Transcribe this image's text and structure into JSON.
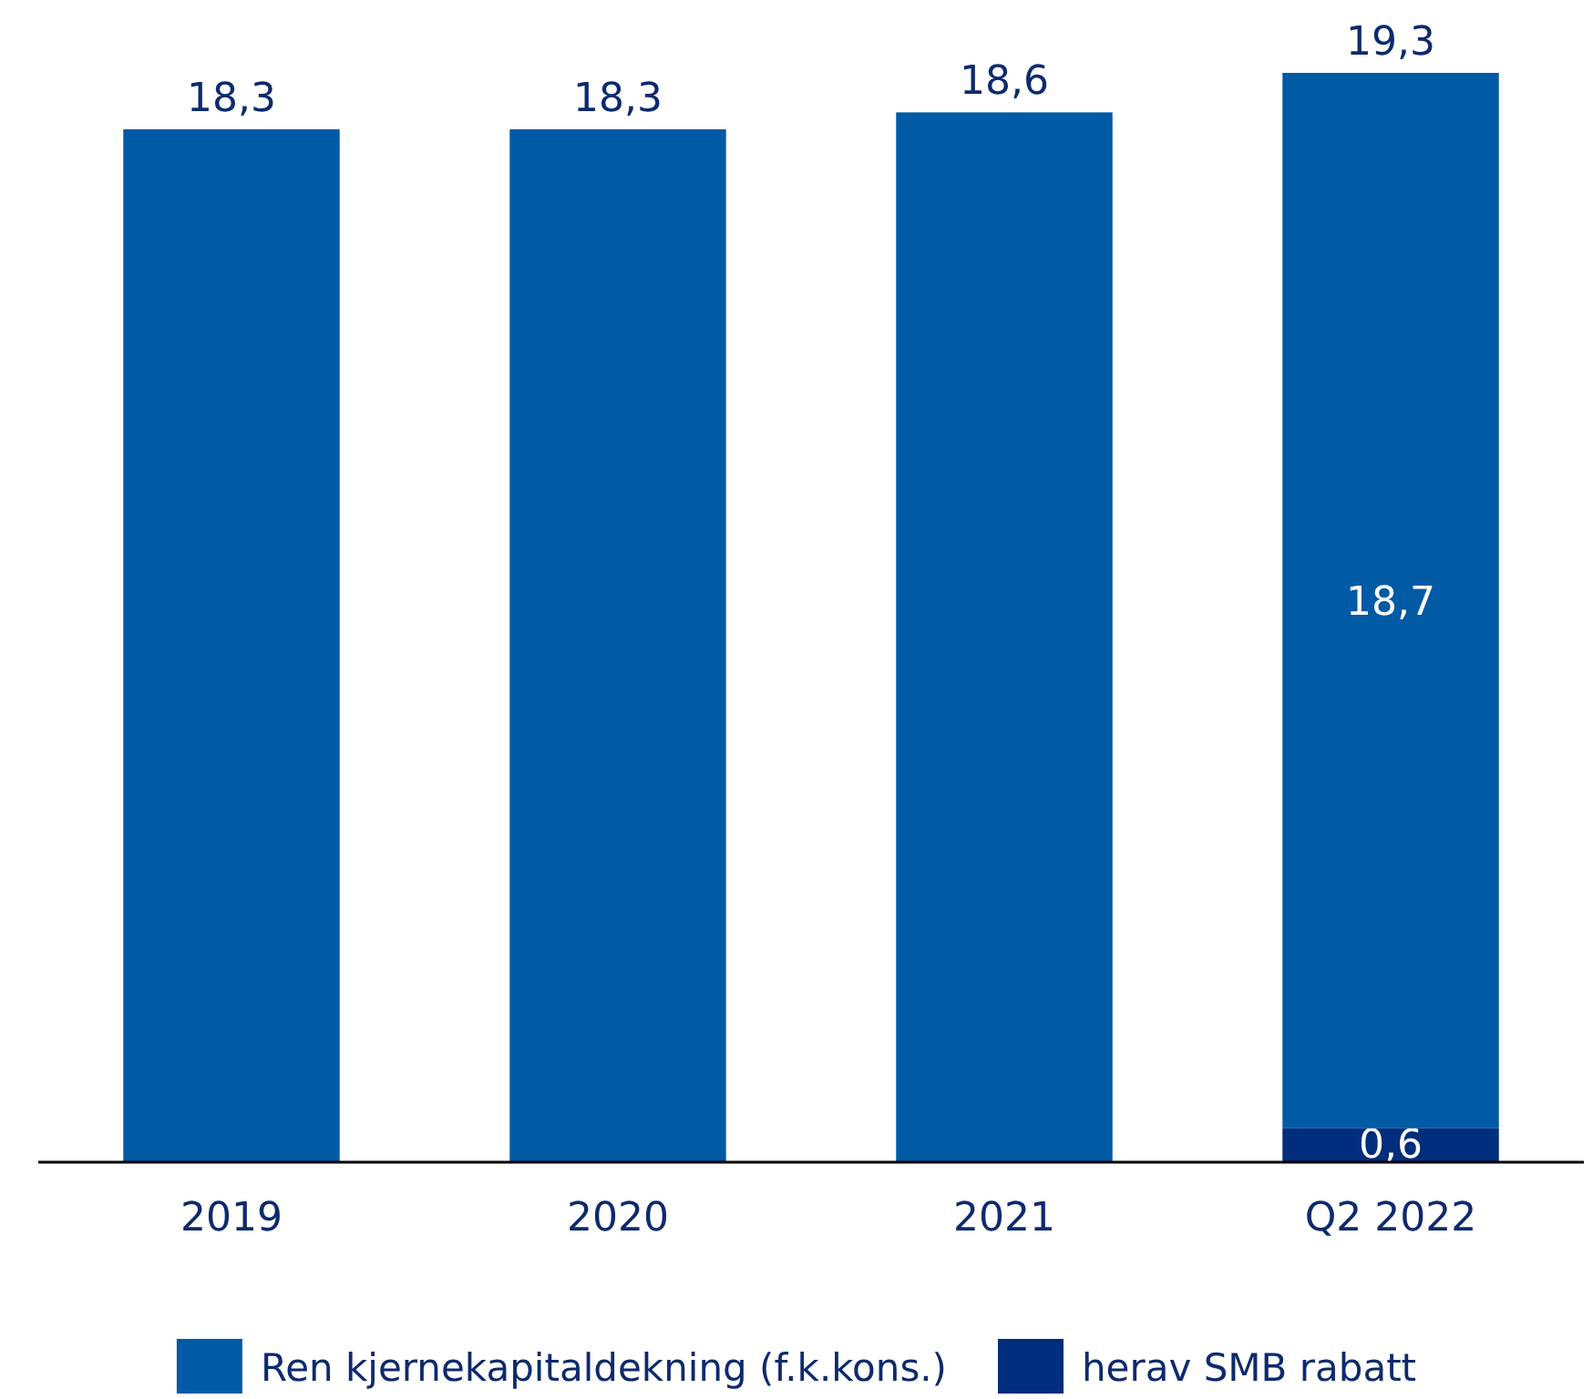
{
  "chart_data": {
    "type": "bar",
    "stacked": true,
    "categories": [
      "2019",
      "2020",
      "2021",
      "Q2 2022"
    ],
    "series": [
      {
        "name": "herav SMB rabatt",
        "color": "#002d7c",
        "values": [
          null,
          null,
          null,
          0.6
        ],
        "value_labels": [
          null,
          null,
          null,
          "0,6"
        ]
      },
      {
        "name": "Ren kjernekapitaldekning (f.k.kons.)",
        "color": "#005aa4",
        "values": [
          18.3,
          18.3,
          18.6,
          18.7
        ],
        "value_labels": [
          null,
          null,
          null,
          "18,7"
        ]
      }
    ],
    "totals": [
      "18,3",
      "18,3",
      "18,6",
      "19,3"
    ],
    "legend": "bottom"
  }
}
